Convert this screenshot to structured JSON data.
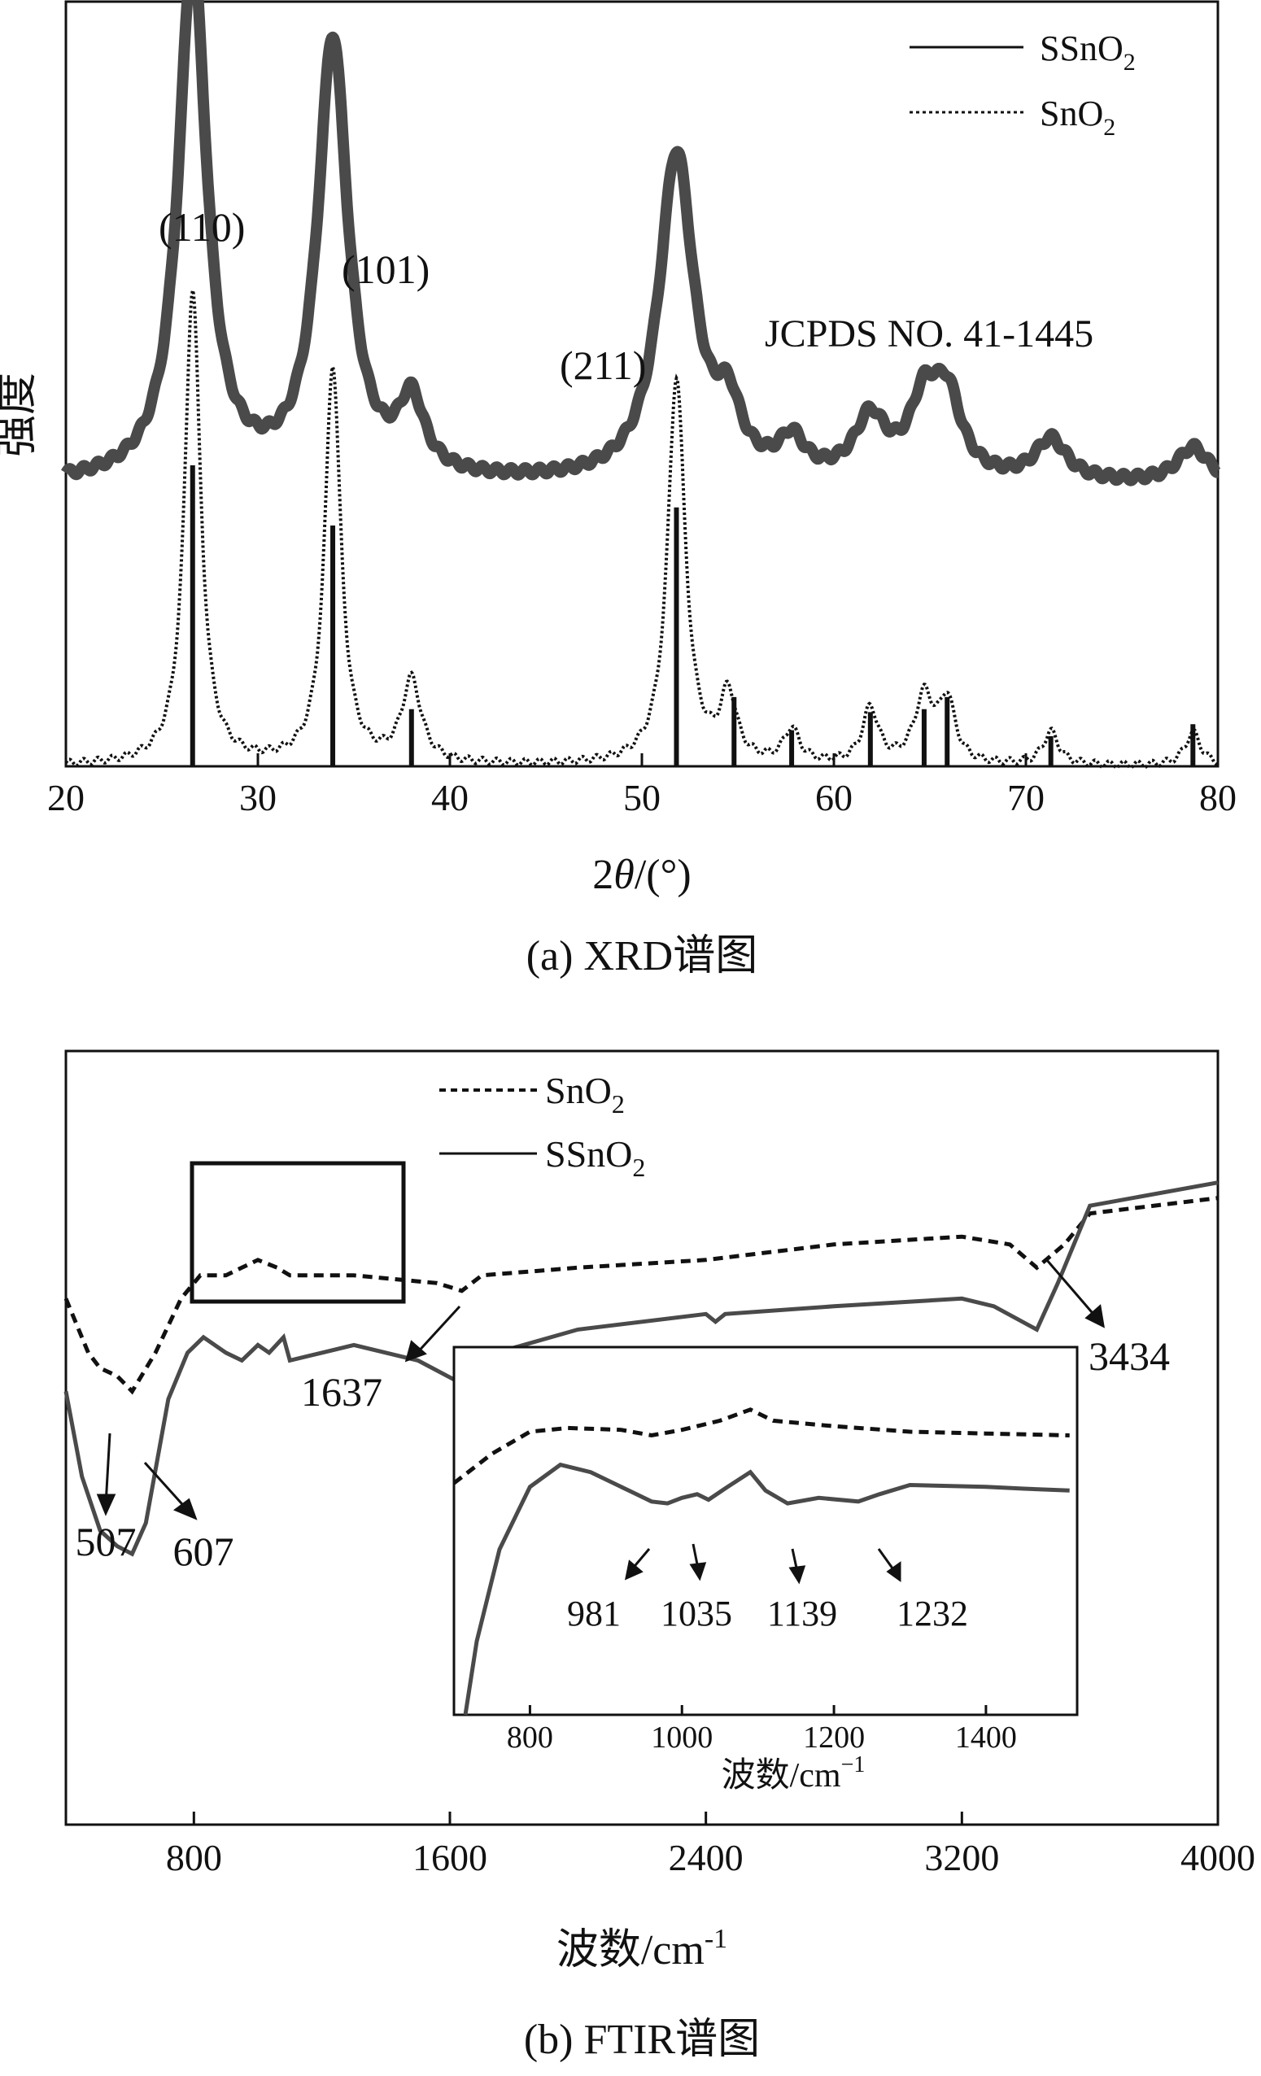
{
  "chart_data": [
    {
      "type": "line",
      "panel_caption": "(a) XRD谱图",
      "xlabel_prefix": "2",
      "xlabel_symbol": "θ",
      "xlabel_suffix": "/(°)",
      "ylabel": "强度",
      "xlim": [
        20,
        80
      ],
      "xticks": [
        "20",
        "30",
        "40",
        "50",
        "60",
        "70",
        "80"
      ],
      "legend": [
        {
          "name": "SSnO",
          "sub": "2",
          "style": "solid"
        },
        {
          "name": "SnO",
          "sub": "2",
          "style": "dotted"
        }
      ],
      "reference_label": "JCPDS NO. 41-1445",
      "peak_labels": [
        {
          "text": "(110)",
          "x": 26.6
        },
        {
          "text": "(101)",
          "x": 33.9
        },
        {
          "text": "(211)",
          "x": 51.8
        }
      ],
      "series": [
        {
          "name": "SSnO2",
          "color": "#4a4a4a",
          "peaks": [
            [
              26.6,
              0.88,
              0.9
            ],
            [
              33.9,
              0.74,
              0.95
            ],
            [
              38.0,
              0.12,
              0.8
            ],
            [
              51.8,
              0.55,
              1.1
            ],
            [
              54.5,
              0.1,
              0.8
            ],
            [
              57.8,
              0.06,
              0.8
            ],
            [
              61.9,
              0.1,
              1.0
            ],
            [
              64.7,
              0.12,
              0.9
            ],
            [
              65.9,
              0.13,
              0.9
            ],
            [
              71.3,
              0.07,
              1.0
            ],
            [
              78.7,
              0.06,
              1.0
            ]
          ],
          "baseline": 0.32
        },
        {
          "name": "SnO2",
          "color": "#111111",
          "peaks": [
            [
              26.6,
              0.86,
              0.5
            ],
            [
              33.9,
              0.72,
              0.5
            ],
            [
              38.0,
              0.15,
              0.6
            ],
            [
              51.8,
              0.7,
              0.55
            ],
            [
              54.5,
              0.12,
              0.5
            ],
            [
              57.8,
              0.06,
              0.5
            ],
            [
              61.9,
              0.1,
              0.5
            ],
            [
              64.7,
              0.12,
              0.6
            ],
            [
              65.9,
              0.11,
              0.5
            ],
            [
              71.3,
              0.06,
              0.5
            ],
            [
              78.7,
              0.06,
              0.5
            ]
          ],
          "baseline": 0.1
        }
      ],
      "reference_lines": [
        [
          26.6,
          1.0
        ],
        [
          33.9,
          0.8
        ],
        [
          38.0,
          0.19
        ],
        [
          51.8,
          0.86
        ],
        [
          54.8,
          0.23
        ],
        [
          57.8,
          0.12
        ],
        [
          61.9,
          0.18
        ],
        [
          64.7,
          0.19
        ],
        [
          65.9,
          0.23
        ],
        [
          71.3,
          0.1
        ],
        [
          78.7,
          0.14
        ]
      ]
    },
    {
      "type": "line",
      "panel_caption": "(b) FTIR谱图",
      "xlabel": "波数/cm",
      "xlabel_sup": "-1",
      "xlim": [
        400,
        4000
      ],
      "xticks": [
        "800",
        "1600",
        "2400",
        "3200",
        "4000"
      ],
      "legend": [
        {
          "name": "SnO",
          "sub": "2",
          "style": "dashed"
        },
        {
          "name": "SSnO",
          "sub": "2",
          "style": "solid"
        }
      ],
      "annotations": [
        "507",
        "607",
        "1637",
        "3434"
      ],
      "series": [
        {
          "name": "SnO2",
          "color": "#111111",
          "points": [
            [
              400,
              0.68
            ],
            [
              470,
              0.61
            ],
            [
              507,
              0.59
            ],
            [
              560,
              0.58
            ],
            [
              607,
              0.56
            ],
            [
              680,
              0.61
            ],
            [
              760,
              0.68
            ],
            [
              820,
              0.71
            ],
            [
              900,
              0.71
            ],
            [
              950,
              0.72
            ],
            [
              1000,
              0.73
            ],
            [
              1060,
              0.72
            ],
            [
              1100,
              0.71
            ],
            [
              1300,
              0.71
            ],
            [
              1560,
              0.7
            ],
            [
              1637,
              0.69
            ],
            [
              1700,
              0.71
            ],
            [
              2000,
              0.72
            ],
            [
              2400,
              0.73
            ],
            [
              2800,
              0.75
            ],
            [
              3200,
              0.76
            ],
            [
              3350,
              0.75
            ],
            [
              3434,
              0.72
            ],
            [
              3520,
              0.75
            ],
            [
              3600,
              0.79
            ],
            [
              4000,
              0.81
            ]
          ]
        },
        {
          "name": "SSnO2",
          "color": "#4a4a4a",
          "points": [
            [
              400,
              0.56
            ],
            [
              450,
              0.45
            ],
            [
              507,
              0.38
            ],
            [
              560,
              0.36
            ],
            [
              607,
              0.35
            ],
            [
              650,
              0.39
            ],
            [
              720,
              0.55
            ],
            [
              780,
              0.61
            ],
            [
              830,
              0.63
            ],
            [
              900,
              0.61
            ],
            [
              950,
              0.6
            ],
            [
              1000,
              0.62
            ],
            [
              1035,
              0.61
            ],
            [
              1080,
              0.63
            ],
            [
              1100,
              0.6
            ],
            [
              1200,
              0.61
            ],
            [
              1300,
              0.62
            ],
            [
              1500,
              0.6
            ],
            [
              1637,
              0.57
            ],
            [
              1660,
              0.6
            ],
            [
              2000,
              0.64
            ],
            [
              2400,
              0.66
            ],
            [
              2430,
              0.65
            ],
            [
              2460,
              0.66
            ],
            [
              2800,
              0.67
            ],
            [
              3200,
              0.68
            ],
            [
              3300,
              0.67
            ],
            [
              3434,
              0.64
            ],
            [
              3500,
              0.7
            ],
            [
              3600,
              0.8
            ],
            [
              4000,
              0.83
            ]
          ]
        }
      ],
      "inset": {
        "xlabel": "波数/cm",
        "xlabel_sup": "−1",
        "xlim": [
          700,
          1520
        ],
        "xticks": [
          "800",
          "1000",
          "1200",
          "1400"
        ],
        "annotations": [
          "981",
          "1035",
          "1139",
          "1232"
        ],
        "series": [
          {
            "name": "SnO2",
            "points": [
              [
                700,
                0.63
              ],
              [
                750,
                0.71
              ],
              [
                800,
                0.77
              ],
              [
                850,
                0.78
              ],
              [
                920,
                0.775
              ],
              [
                960,
                0.76
              ],
              [
                1000,
                0.775
              ],
              [
                1050,
                0.8
              ],
              [
                1090,
                0.83
              ],
              [
                1120,
                0.8
              ],
              [
                1200,
                0.785
              ],
              [
                1300,
                0.77
              ],
              [
                1400,
                0.765
              ],
              [
                1510,
                0.76
              ]
            ]
          },
          {
            "name": "SSnO2",
            "points": [
              [
                715,
                0.0
              ],
              [
                730,
                0.2
              ],
              [
                760,
                0.45
              ],
              [
                800,
                0.62
              ],
              [
                840,
                0.68
              ],
              [
                880,
                0.66
              ],
              [
                930,
                0.61
              ],
              [
                960,
                0.58
              ],
              [
                981,
                0.575
              ],
              [
                1000,
                0.59
              ],
              [
                1020,
                0.6
              ],
              [
                1035,
                0.585
              ],
              [
                1060,
                0.62
              ],
              [
                1090,
                0.66
              ],
              [
                1110,
                0.61
              ],
              [
                1139,
                0.575
              ],
              [
                1180,
                0.59
              ],
              [
                1232,
                0.58
              ],
              [
                1260,
                0.6
              ],
              [
                1300,
                0.625
              ],
              [
                1400,
                0.62
              ],
              [
                1450,
                0.615
              ],
              [
                1510,
                0.61
              ]
            ]
          }
        ]
      }
    }
  ]
}
